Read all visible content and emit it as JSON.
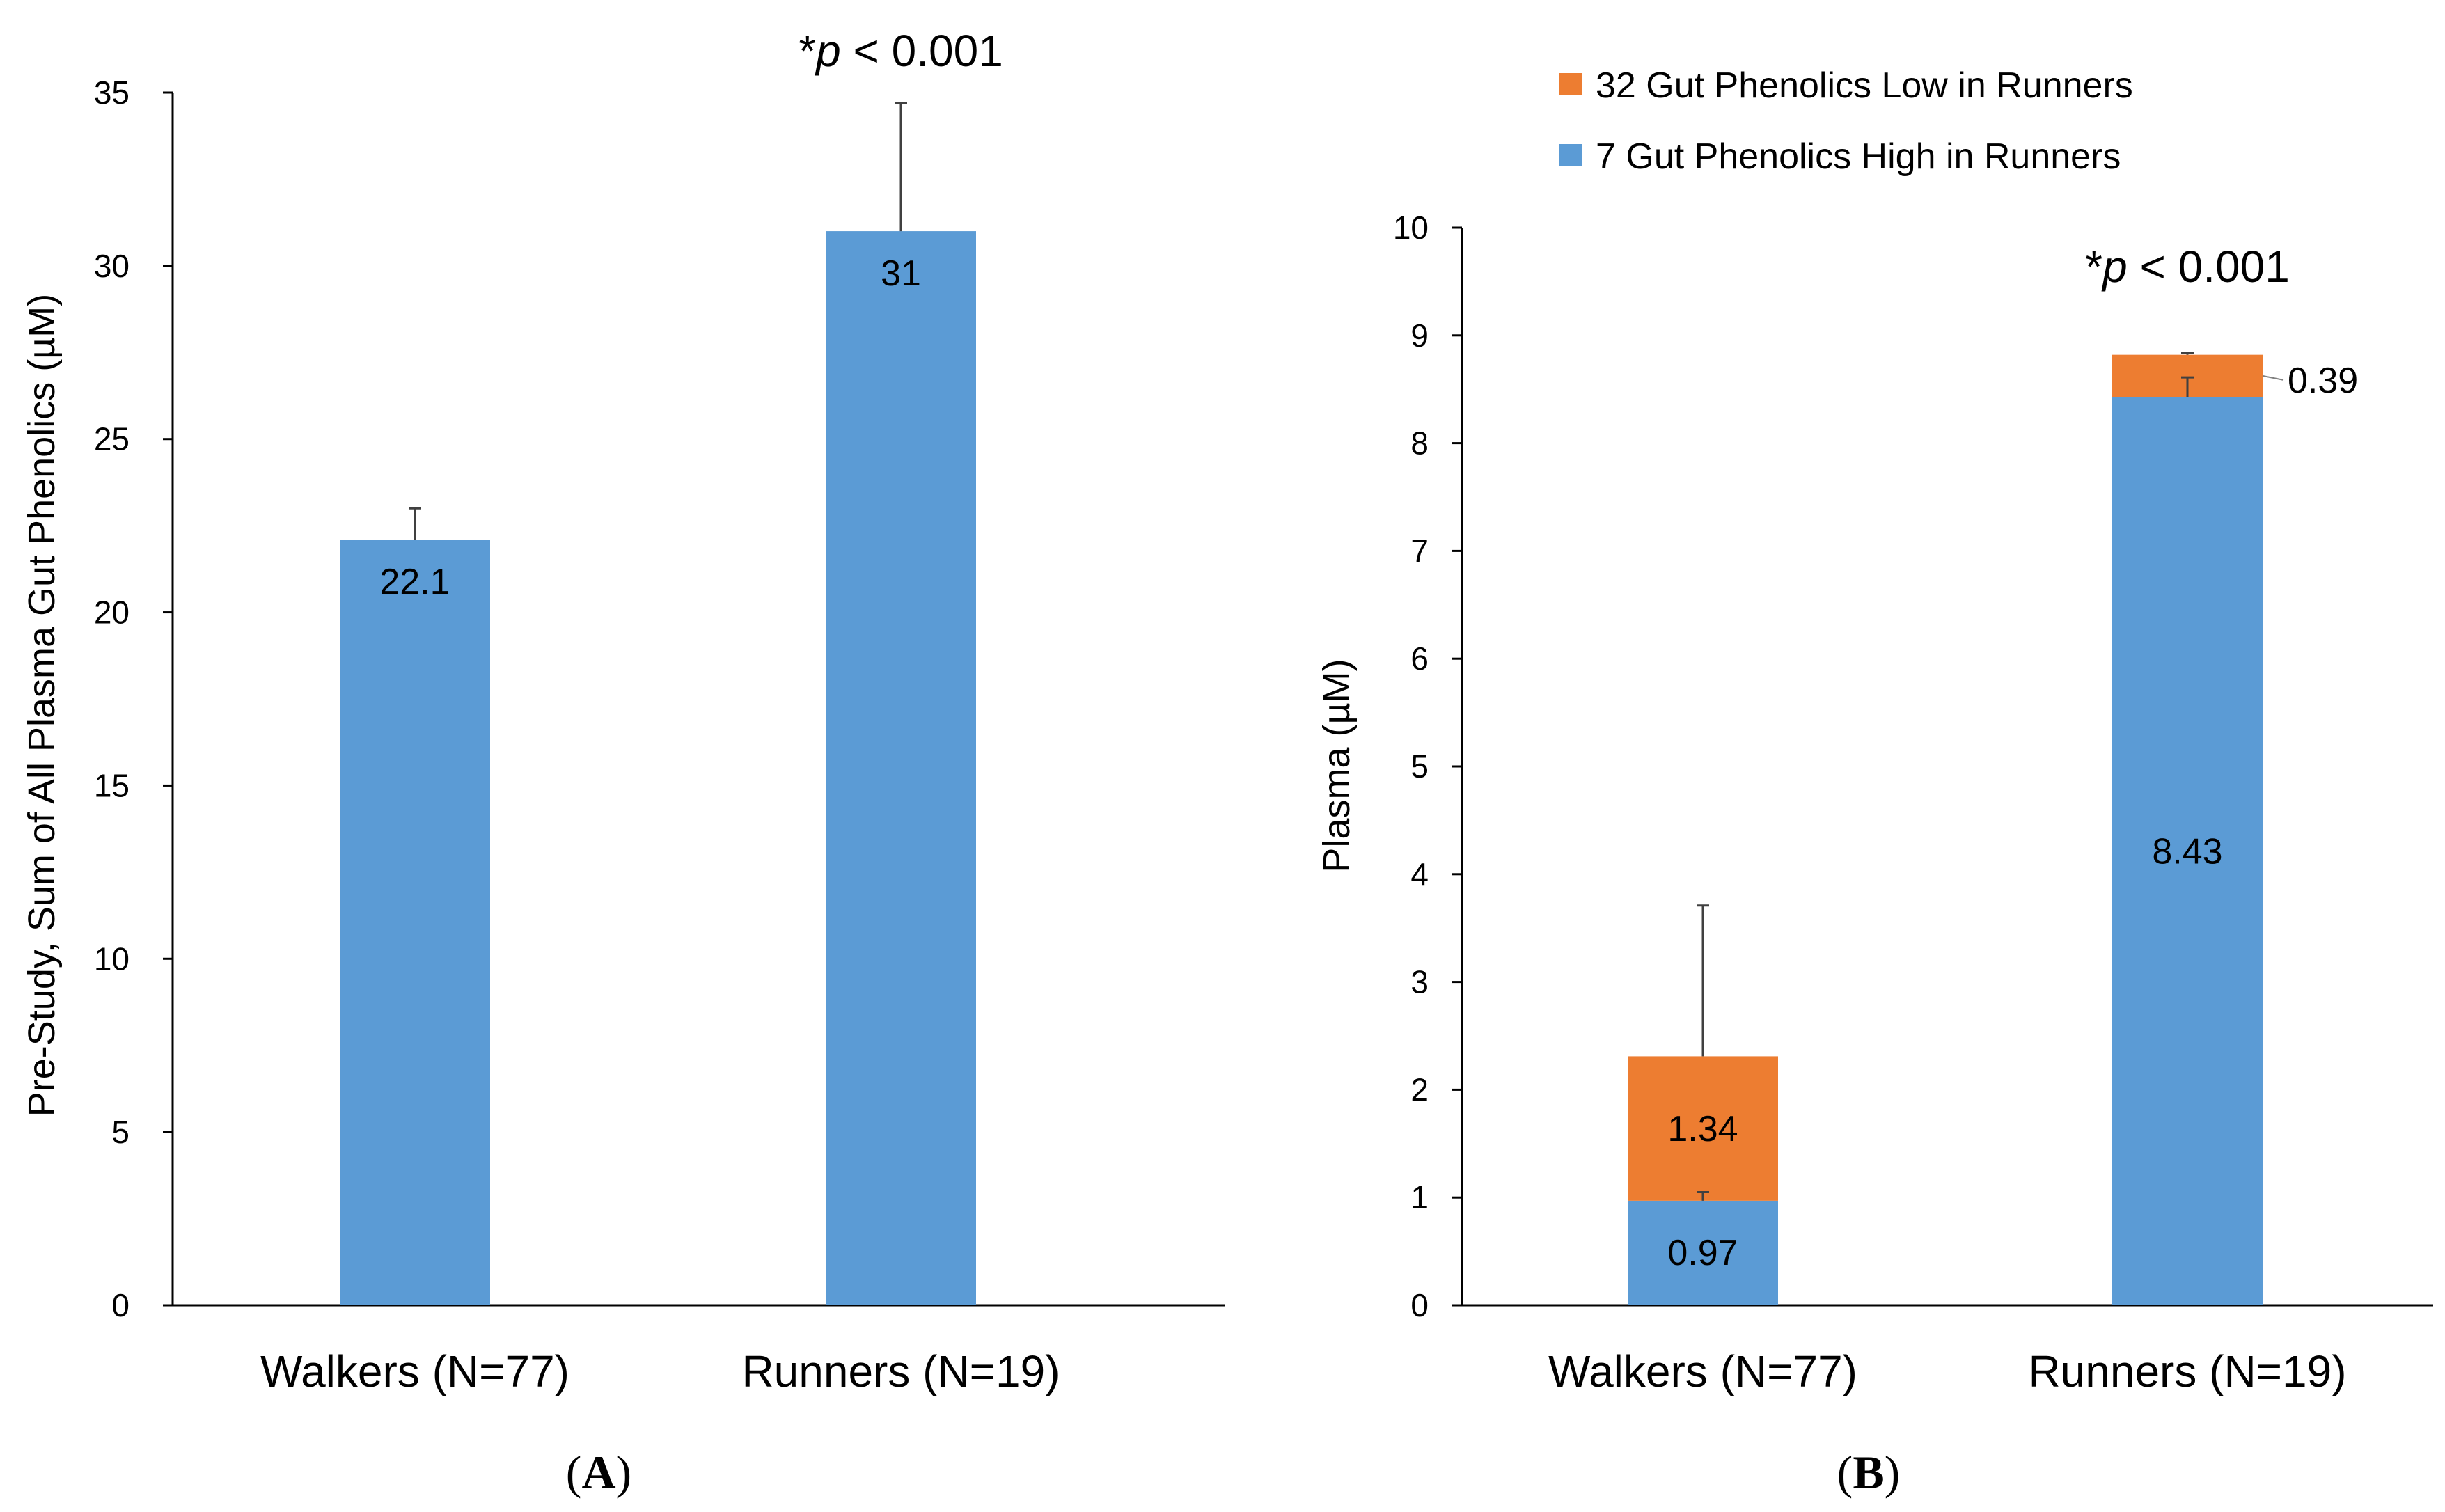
{
  "chart_data": [
    {
      "type": "bar",
      "panel_label": "A",
      "panel_label_paren_open": "(",
      "panel_label_paren_close": ")",
      "categories": [
        "Walkers (N=77)",
        "Runners (N=19)"
      ],
      "series": [
        {
          "name": "Sum of All Plasma Gut Phenolics",
          "values": [
            22.1,
            31
          ],
          "errors": [
            0.9,
            3.7
          ],
          "color": "#5b9bd5"
        }
      ],
      "data_labels": [
        "22.1",
        "31"
      ],
      "ylabel": "Pre-Study, Sum of All Plasma Gut Phenolics (µM)",
      "ylim": [
        0,
        35
      ],
      "yticks": [
        0,
        5,
        10,
        15,
        20,
        25,
        30,
        35
      ],
      "annotation": {
        "star": "*",
        "p": "p",
        "rest": " < 0.001",
        "category_index": 1
      }
    },
    {
      "type": "stacked-bar",
      "panel_label": "B",
      "panel_label_paren_open": "(",
      "panel_label_paren_close": ")",
      "categories": [
        "Walkers (N=77)",
        "Runners (N=19)"
      ],
      "series": [
        {
          "name": "7 Gut Phenolics High in Runners",
          "values": [
            0.97,
            8.43
          ],
          "errors": [
            0.08,
            0.18
          ],
          "labels": [
            "0.97",
            "8.43"
          ],
          "color": "#5b9bd5"
        },
        {
          "name": "32 Gut Phenolics Low in Runners",
          "values": [
            1.34,
            0.39
          ],
          "errors": [
            1.4,
            0.02
          ],
          "labels": [
            "1.34",
            "0.39"
          ],
          "color": "#ed7d31"
        }
      ],
      "legend": [
        "32 Gut Phenolics Low in Runners",
        "7 Gut Phenolics High in Runners"
      ],
      "legend_position": "top",
      "ylabel": "Plasma (µM)",
      "ylim": [
        0,
        10
      ],
      "yticks": [
        0,
        1,
        2,
        3,
        4,
        5,
        6,
        7,
        8,
        9,
        10
      ],
      "annotation": {
        "star": "*",
        "p": "p",
        "rest": " < 0.001",
        "category_index": 1
      }
    }
  ]
}
